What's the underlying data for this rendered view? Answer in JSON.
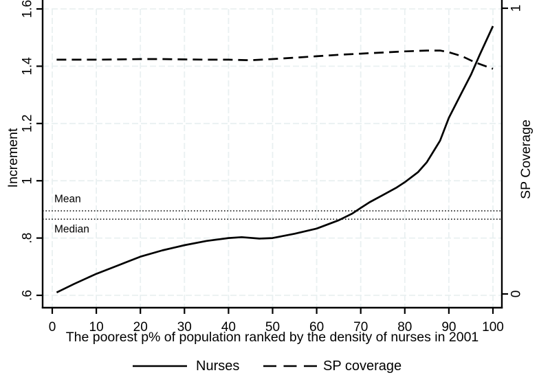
{
  "figure": {
    "background": "#ffffff",
    "grid_color": "#e9f0f1",
    "line_color": "#000000"
  },
  "chart_data": {
    "type": "line",
    "title": "",
    "xlabel": "The poorest p% of population ranked by the density of nurses in 2001",
    "ylabel_left": "Increment",
    "ylabel_right": "SP Coverage",
    "xlim": [
      0,
      100
    ],
    "ylim_left": [
      0.6,
      1.6
    ],
    "ylim_right": [
      0,
      1
    ],
    "grid": true,
    "x_ticks": [
      0,
      10,
      20,
      30,
      40,
      50,
      60,
      70,
      80,
      90,
      100
    ],
    "y_ticks_left": {
      "labels": [
        ".6",
        ".8",
        "1",
        "1.2",
        "1.4",
        "1.6"
      ],
      "values": [
        0.6,
        0.8,
        1.0,
        1.2,
        1.4,
        1.6
      ]
    },
    "y_ticks_right": {
      "labels": [
        "0",
        "1"
      ],
      "values": [
        0,
        1
      ]
    },
    "series": [
      {
        "name": "Nurses",
        "axis": "left",
        "style": "solid",
        "x": [
          1,
          5,
          10,
          15,
          20,
          25,
          30,
          35,
          40,
          43,
          47,
          50,
          55,
          60,
          65,
          68,
          70,
          72,
          75,
          78,
          80,
          83,
          85,
          88,
          90,
          93,
          95,
          97,
          100
        ],
        "y": [
          0.61,
          0.64,
          0.675,
          0.705,
          0.735,
          0.757,
          0.775,
          0.79,
          0.8,
          0.803,
          0.798,
          0.8,
          0.815,
          0.833,
          0.862,
          0.885,
          0.905,
          0.925,
          0.95,
          0.975,
          0.995,
          1.03,
          1.065,
          1.14,
          1.22,
          1.31,
          1.37,
          1.44,
          1.54
        ]
      },
      {
        "name": "SP coverage",
        "axis": "right",
        "style": "dashed",
        "x": [
          1,
          5,
          10,
          15,
          20,
          25,
          30,
          35,
          40,
          45,
          50,
          55,
          60,
          65,
          70,
          75,
          80,
          85,
          88,
          90,
          93,
          96,
          100
        ],
        "y": [
          0.82,
          0.82,
          0.82,
          0.821,
          0.822,
          0.822,
          0.821,
          0.82,
          0.82,
          0.818,
          0.822,
          0.827,
          0.832,
          0.837,
          0.841,
          0.845,
          0.849,
          0.852,
          0.852,
          0.846,
          0.832,
          0.81,
          0.788
        ]
      }
    ],
    "reference_lines": [
      {
        "label": "Mean",
        "axis": "left",
        "value": 0.895,
        "style": "dotted"
      },
      {
        "label": "Median",
        "axis": "left",
        "value": 0.866,
        "style": "dotted"
      }
    ],
    "legend": {
      "position": "bottom",
      "entries": [
        {
          "label": "Nurses",
          "style": "solid"
        },
        {
          "label": "SP coverage",
          "style": "dashed"
        }
      ]
    }
  }
}
